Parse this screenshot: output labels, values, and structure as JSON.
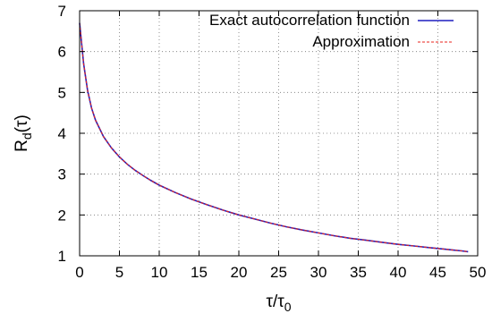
{
  "chart_data": {
    "type": "line",
    "title": "",
    "xlabel": {
      "base": "τ/τ",
      "sub": "0"
    },
    "ylabel": {
      "base": "R",
      "sub": "d",
      "rest": "(τ)"
    },
    "xlim": [
      0,
      50
    ],
    "ylim": [
      1,
      7
    ],
    "xticks": [
      0,
      5,
      10,
      15,
      20,
      25,
      30,
      35,
      40,
      45,
      50
    ],
    "yticks": [
      1,
      2,
      3,
      4,
      5,
      6,
      7
    ],
    "grid": true,
    "grid_style": "dotted",
    "legend_position": "top-right",
    "series": [
      {
        "name": "Exact autocorrelation function",
        "color": "#1f1fbf",
        "style": "solid",
        "x": [
          0,
          0.5,
          1,
          1.5,
          2,
          3,
          4,
          5,
          6,
          7,
          8,
          9,
          10,
          12,
          14,
          16,
          18,
          20,
          22,
          24,
          26,
          28,
          30,
          32,
          34,
          36,
          38,
          40,
          42,
          44,
          46,
          48,
          48.8
        ],
        "y": [
          6.7,
          5.7,
          5.05,
          4.62,
          4.32,
          3.92,
          3.64,
          3.42,
          3.24,
          3.09,
          2.96,
          2.84,
          2.73,
          2.55,
          2.39,
          2.25,
          2.12,
          2.0,
          1.9,
          1.8,
          1.71,
          1.63,
          1.56,
          1.49,
          1.43,
          1.38,
          1.33,
          1.28,
          1.24,
          1.2,
          1.16,
          1.12,
          1.1
        ]
      },
      {
        "name": "Approximation",
        "color": "#e8231e",
        "style": "dashed",
        "x": [
          0,
          0.5,
          1,
          1.5,
          2,
          3,
          4,
          5,
          6,
          7,
          8,
          9,
          10,
          12,
          14,
          16,
          18,
          20,
          22,
          24,
          26,
          28,
          30,
          32,
          34,
          36,
          38,
          40,
          42,
          44,
          46,
          48,
          48.8
        ],
        "y": [
          6.7,
          5.7,
          5.05,
          4.62,
          4.32,
          3.92,
          3.64,
          3.42,
          3.24,
          3.09,
          2.96,
          2.84,
          2.73,
          2.55,
          2.39,
          2.25,
          2.12,
          2.0,
          1.9,
          1.8,
          1.71,
          1.63,
          1.56,
          1.49,
          1.43,
          1.38,
          1.33,
          1.28,
          1.24,
          1.2,
          1.16,
          1.12,
          1.1
        ]
      }
    ]
  }
}
